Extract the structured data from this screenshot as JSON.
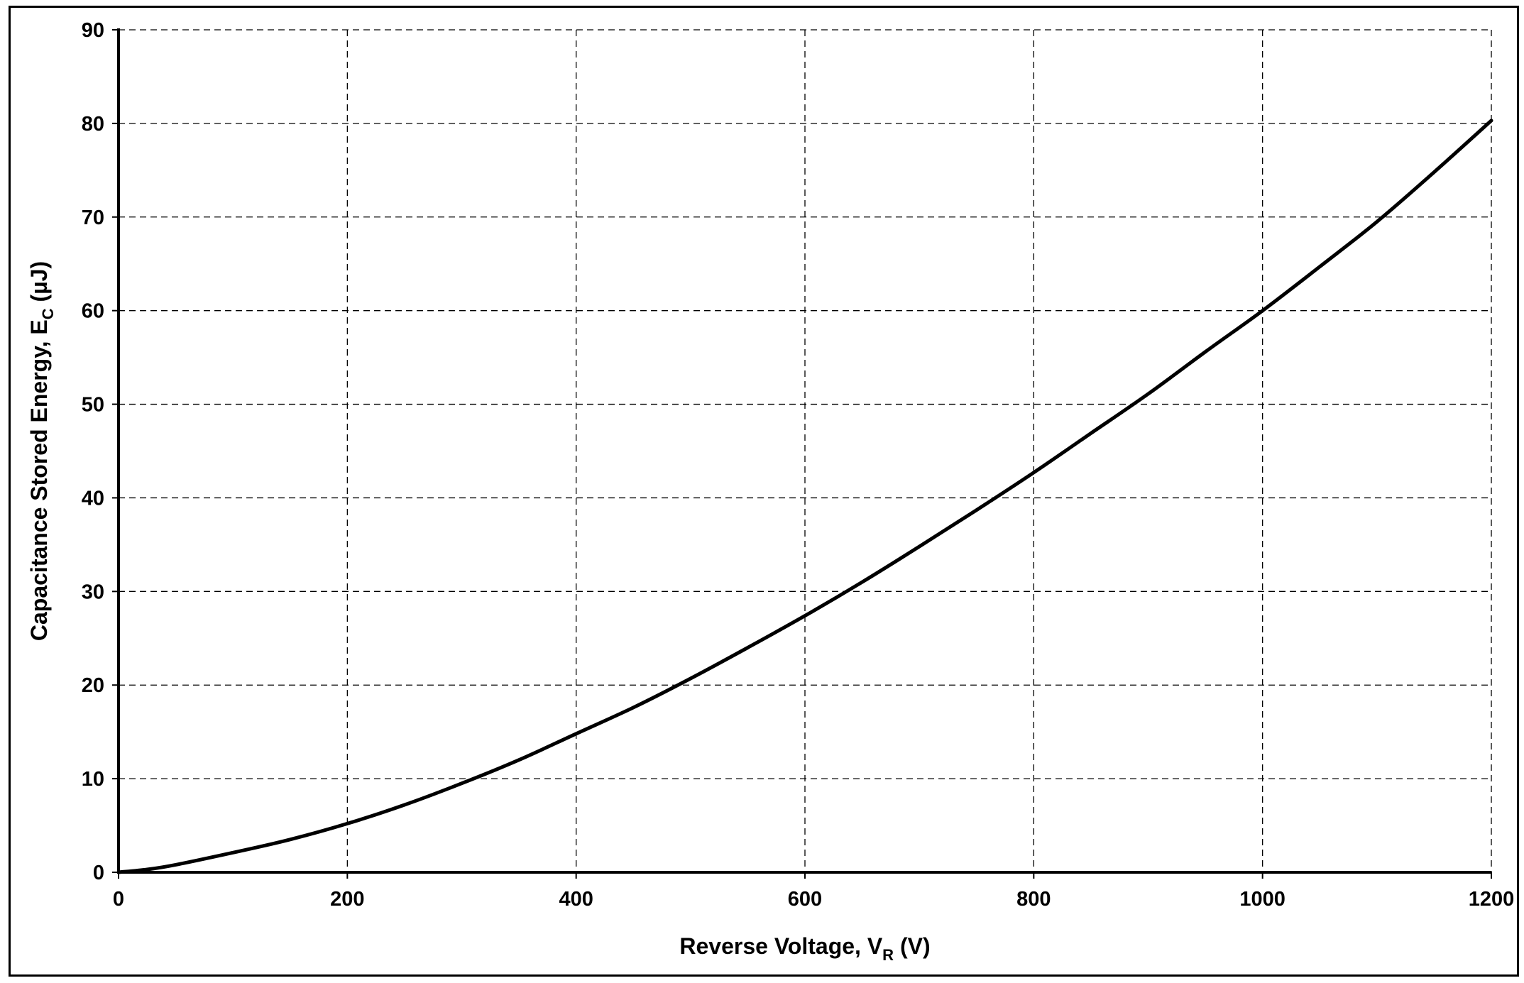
{
  "chart_data": {
    "type": "line",
    "xlabel": "Reverse Voltage, V",
    "xlabel_subscript": "R",
    "xlabel_suffix": " (V)",
    "ylabel": "Capacitance Stored Energy, E",
    "ylabel_subscript": "C",
    "ylabel_suffix": " (µJ)",
    "xlim": [
      0,
      1200
    ],
    "ylim": [
      0,
      90
    ],
    "x_ticks": [
      "0",
      "200",
      "400",
      "600",
      "800",
      "1000",
      "1200"
    ],
    "y_ticks": [
      "0",
      "10",
      "20",
      "30",
      "40",
      "50",
      "60",
      "70",
      "80",
      "90"
    ],
    "grid": true,
    "grid_style": "dashed",
    "series": [
      {
        "color": "#000000",
        "x": [
          0,
          25,
          50,
          100,
          150,
          200,
          250,
          300,
          350,
          400,
          450,
          500,
          550,
          600,
          650,
          700,
          750,
          800,
          850,
          900,
          950,
          1000,
          1050,
          1100,
          1150,
          1200
        ],
        "y": [
          0,
          0.3,
          0.8,
          2.1,
          3.5,
          5.2,
          7.2,
          9.5,
          12.0,
          14.8,
          17.6,
          20.7,
          24.0,
          27.4,
          31.0,
          34.8,
          38.7,
          42.7,
          46.9,
          51.1,
          55.6,
          60.0,
          64.7,
          69.5,
          74.8,
          80.3
        ]
      }
    ]
  }
}
